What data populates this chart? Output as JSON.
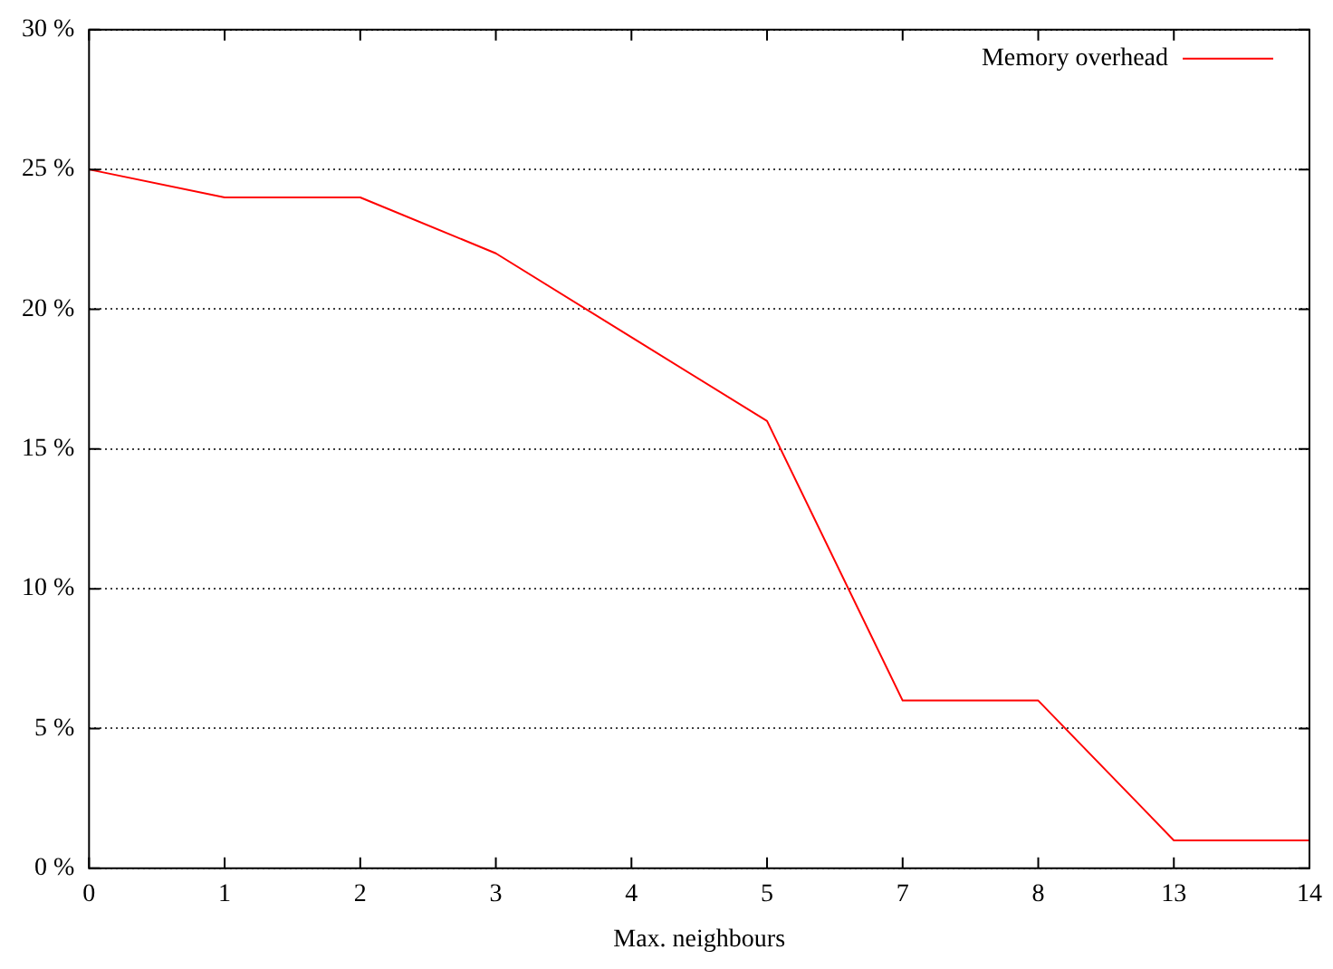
{
  "chart_data": {
    "type": "line",
    "xlabel": "Max. neighbours",
    "categories": [
      "0",
      "1",
      "2",
      "3",
      "4",
      "5",
      "7",
      "8",
      "13",
      "14"
    ],
    "series": [
      {
        "name": "Memory overhead",
        "color": "#ff0000",
        "values": [
          25,
          24,
          24,
          22,
          19,
          16,
          6,
          6,
          1,
          1
        ]
      }
    ],
    "ylim": [
      0,
      30
    ],
    "yticks": [
      {
        "value": 0,
        "label": "0 %"
      },
      {
        "value": 5,
        "label": "5 %"
      },
      {
        "value": 10,
        "label": "10 %"
      },
      {
        "value": 15,
        "label": "15 %"
      },
      {
        "value": 20,
        "label": "20 %"
      },
      {
        "value": 25,
        "label": "25 %"
      },
      {
        "value": 30,
        "label": "30 %"
      }
    ],
    "grid": "y",
    "legend": "top right",
    "marker": "none",
    "line_style": "solid"
  }
}
